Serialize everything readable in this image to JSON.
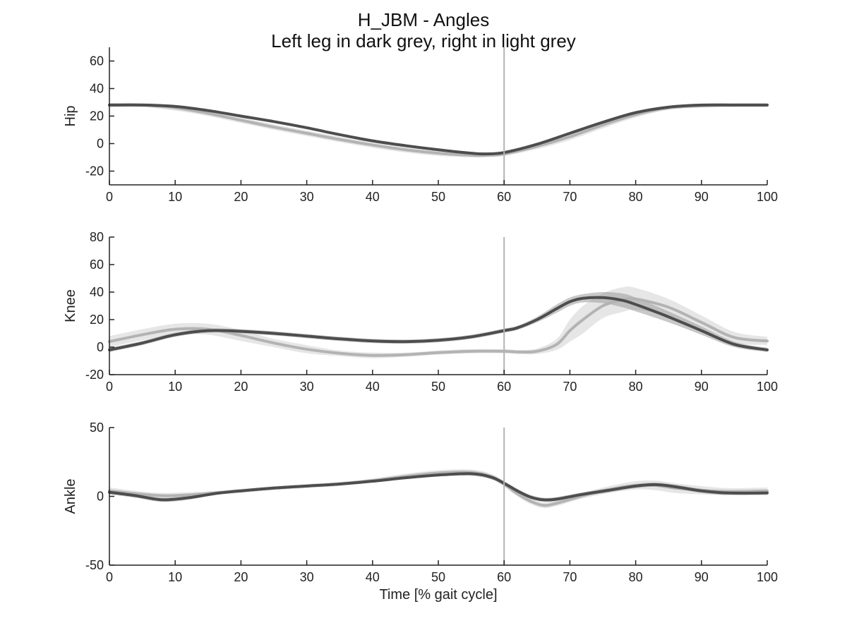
{
  "figure": {
    "title": "H_JBM - Angles",
    "subtitle": "Left leg in dark grey, right in light grey"
  },
  "colors": {
    "left_line": "#4d4d4d",
    "left_band": "#9a9a9a",
    "right_line": "#b3b3b3",
    "right_band": "#e3e3e3",
    "event_line": "#b3b3b3",
    "axis": "#222222"
  },
  "chart_data": [
    {
      "type": "line",
      "ylabel": "Hip",
      "xlabel": "",
      "xlim": [
        0,
        100
      ],
      "ylim": [
        -30,
        70
      ],
      "xticks": [
        0,
        10,
        20,
        30,
        40,
        50,
        60,
        70,
        80,
        90,
        100
      ],
      "yticks": [
        -20,
        0,
        20,
        40,
        60
      ],
      "vline": 60,
      "x": [
        0,
        5,
        10,
        15,
        20,
        25,
        30,
        35,
        40,
        45,
        50,
        55,
        57,
        60,
        65,
        70,
        75,
        80,
        85,
        90,
        95,
        100
      ],
      "series": [
        {
          "side": "left",
          "values": [
            28,
            28,
            27,
            24,
            20,
            16,
            11.5,
            6.5,
            2,
            -1.5,
            -4.5,
            -7,
            -7.5,
            -6.5,
            -0.5,
            7.5,
            15.5,
            22.5,
            26.5,
            28,
            28,
            28
          ],
          "band": [
            1,
            1,
            1,
            1,
            1,
            1,
            1,
            1,
            1,
            1,
            1,
            1,
            1,
            1,
            1,
            1,
            1,
            1,
            1,
            1,
            1,
            1
          ]
        },
        {
          "side": "right",
          "values": [
            28,
            28,
            26,
            22,
            17,
            12,
            7.5,
            3,
            -1,
            -4.5,
            -7,
            -8.5,
            -8.5,
            -7.5,
            -2,
            5,
            13.5,
            21,
            26,
            27.5,
            28,
            28
          ],
          "band": [
            1.5,
            1.5,
            2,
            2,
            2,
            2,
            2,
            2,
            2,
            2,
            2,
            1.5,
            1.5,
            1.5,
            2,
            2.5,
            2.5,
            2,
            1.5,
            1.5,
            1.5,
            1.5
          ]
        }
      ]
    },
    {
      "type": "line",
      "ylabel": "Knee",
      "xlabel": "",
      "xlim": [
        0,
        100
      ],
      "ylim": [
        -20,
        80
      ],
      "xticks": [
        0,
        10,
        20,
        30,
        40,
        50,
        60,
        70,
        80,
        90,
        100
      ],
      "yticks": [
        -20,
        0,
        20,
        40,
        60,
        80
      ],
      "vline": 60,
      "x": [
        0,
        5,
        10,
        15,
        20,
        25,
        30,
        35,
        40,
        45,
        50,
        55,
        60,
        62,
        65,
        68,
        70,
        72,
        75,
        78,
        80,
        85,
        90,
        95,
        100
      ],
      "series": [
        {
          "side": "left",
          "values": [
            -2,
            3,
            9,
            12,
            11.5,
            10,
            8,
            6,
            4.5,
            4,
            5,
            7.5,
            12,
            14,
            20,
            28,
            33,
            35.5,
            36,
            34,
            31,
            22,
            12,
            2,
            -2
          ],
          "band": [
            1.5,
            1.5,
            1.5,
            1.5,
            1.5,
            1.5,
            1.5,
            1.5,
            1.5,
            1.5,
            1.5,
            1.5,
            1.5,
            1.5,
            2,
            3,
            3,
            3,
            4,
            5,
            5,
            4,
            3,
            2,
            1.5
          ]
        },
        {
          "side": "right",
          "values": [
            4,
            9,
            13,
            13,
            8.5,
            3,
            -1.5,
            -4.5,
            -6,
            -5.5,
            -4,
            -3,
            -3,
            -3.5,
            -3,
            2,
            12,
            20,
            30,
            34.5,
            35,
            29,
            18,
            7,
            4.5
          ],
          "band": [
            4,
            4,
            4,
            4,
            4,
            3,
            3,
            2,
            2,
            1.5,
            1.5,
            1.5,
            1.5,
            1.5,
            2,
            4,
            8,
            10,
            9,
            9,
            8,
            6,
            5,
            4,
            3
          ]
        }
      ]
    },
    {
      "type": "line",
      "ylabel": "Ankle",
      "xlabel": "Time [% gait cycle]",
      "xlim": [
        0,
        100
      ],
      "ylim": [
        -50,
        50
      ],
      "xticks": [
        0,
        10,
        20,
        30,
        40,
        50,
        60,
        70,
        80,
        90,
        100
      ],
      "yticks": [
        -50,
        0,
        50
      ],
      "vline": 60,
      "x": [
        0,
        4,
        8,
        12,
        16,
        20,
        25,
        30,
        35,
        40,
        45,
        50,
        55,
        58,
        60,
        62,
        64,
        66,
        68,
        72,
        76,
        80,
        83,
        86,
        90,
        94,
        100
      ],
      "series": [
        {
          "side": "left",
          "values": [
            3,
            0.5,
            -2.5,
            -1,
            2,
            4,
            6,
            7.5,
            9,
            11,
            13.5,
            15.5,
            16.5,
            14,
            9.5,
            4,
            -0.5,
            -2.5,
            -2,
            1.5,
            4.5,
            7.5,
            8.5,
            7,
            4,
            2.5,
            2.5
          ],
          "band": [
            1.5,
            1.5,
            1.5,
            1.5,
            1,
            1,
            1,
            1,
            1,
            1,
            1,
            1,
            1.5,
            1.5,
            1.5,
            1.5,
            1.5,
            1.5,
            1.5,
            1.5,
            1.5,
            1.5,
            1.5,
            1.5,
            1.5,
            1.5,
            1.5
          ]
        },
        {
          "side": "right",
          "values": [
            4,
            2,
            0.5,
            1,
            2.5,
            4,
            6,
            7.5,
            9,
            11.5,
            14.5,
            17,
            17.5,
            14.5,
            9,
            2,
            -3.5,
            -6.5,
            -5,
            0.5,
            5,
            8,
            8,
            6,
            4.5,
            3.5,
            4
          ],
          "band": [
            2.5,
            2,
            2,
            2,
            1.5,
            1.5,
            1.5,
            1.5,
            1.5,
            1.5,
            2,
            2,
            2,
            2,
            2,
            2,
            2,
            2,
            2,
            2,
            2.5,
            3,
            3.5,
            3.5,
            3,
            2.5,
            2.5
          ]
        }
      ]
    }
  ]
}
